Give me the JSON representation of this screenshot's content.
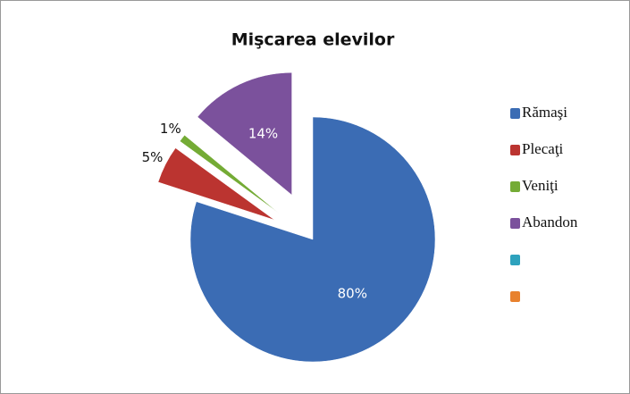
{
  "chart_data": {
    "type": "pie",
    "title": "Mişcarea elevilor",
    "categories": [
      "Rămaşi",
      "Plecaţi",
      "Veniţi",
      "Abandon",
      null,
      null
    ],
    "values": [
      80,
      5,
      1,
      14,
      0,
      0
    ],
    "value_labels": [
      "80%",
      "5%",
      "1%",
      "14%",
      null,
      null
    ],
    "colors": [
      "#3b6cb4",
      "#bb3430",
      "#74ab35",
      "#7b519c",
      "#2ea2bd",
      "#e8812d"
    ],
    "legend": "right"
  }
}
